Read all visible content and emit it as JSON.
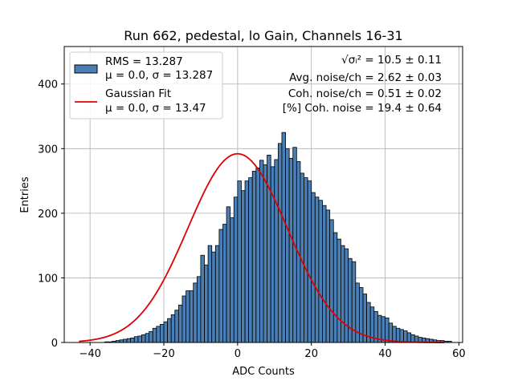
{
  "chart_data": {
    "type": "bar",
    "title": "Run 662, pedestal, lo Gain, Channels 16-31",
    "xlabel": "ADC Counts",
    "ylabel": "Entries",
    "xlim": [
      -47,
      61
    ],
    "ylim": [
      0,
      458
    ],
    "xticks": [
      -40,
      -20,
      0,
      20,
      40,
      60
    ],
    "yticks": [
      0,
      100,
      200,
      300,
      400
    ],
    "grid": true,
    "legend_position": "top-left",
    "bin_width": 1,
    "bin_start": -43,
    "histogram_color": "#4a7fb5",
    "fit_color": "#e00000",
    "series": [
      {
        "name": "RMS = 13.287",
        "name_line2": "μ = 0.0, σ = 13.287",
        "type": "histogram",
        "values": [
          0,
          0,
          0,
          0,
          0,
          0,
          0,
          1,
          1,
          2,
          3,
          4,
          5,
          6,
          7,
          9,
          10,
          12,
          14,
          17,
          22,
          25,
          28,
          32,
          37,
          43,
          50,
          58,
          72,
          80,
          80,
          92,
          102,
          135,
          120,
          150,
          140,
          150,
          175,
          183,
          210,
          193,
          225,
          250,
          235,
          250,
          255,
          265,
          270,
          282,
          275,
          290,
          272,
          283,
          308,
          325,
          300,
          285,
          302,
          280,
          262,
          255,
          250,
          232,
          225,
          220,
          212,
          205,
          190,
          170,
          160,
          150,
          145,
          130,
          125,
          92,
          85,
          75,
          62,
          55,
          48,
          42,
          40,
          38,
          30,
          25,
          22,
          20,
          18,
          15,
          12,
          10,
          8,
          7,
          6,
          5,
          4,
          3,
          3,
          2,
          2
        ]
      },
      {
        "name": "Gaussian Fit",
        "name_line2": "μ = 0.0, σ = 13.47",
        "type": "line",
        "mu": 0.0,
        "sigma": 13.47,
        "amplitude": 292,
        "x_range": [
          -43,
          56
        ]
      }
    ],
    "annotations": [
      {
        "lhs": "√σᵢ²",
        "rhs": " = 10.5 ± 0.11"
      },
      {
        "text": "Avg. noise/ch = 2.62 ± 0.03"
      },
      {
        "text": "Coh. noise/ch = 0.51 ± 0.02"
      },
      {
        "text": "[%] Coh. noise = 19.4 ± 0.64"
      }
    ]
  }
}
